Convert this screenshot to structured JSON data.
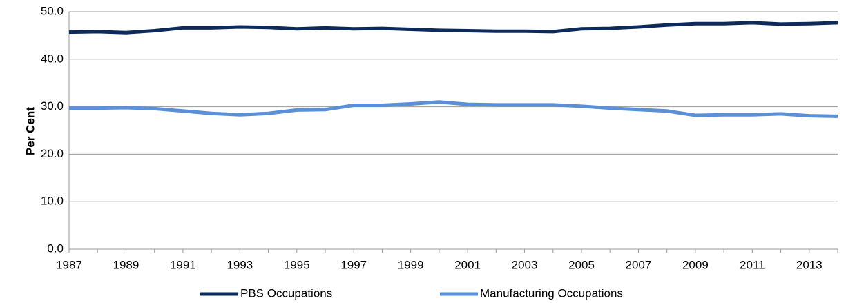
{
  "chart_data": {
    "type": "line",
    "y_label": "Per Cent",
    "categories": [
      "1987",
      null,
      "1989",
      null,
      "1991",
      null,
      "1993",
      null,
      "1995",
      null,
      "1997",
      null,
      "1999",
      null,
      "2001",
      null,
      "2003",
      null,
      "2005",
      null,
      "2007",
      null,
      "2009",
      null,
      "2011",
      null,
      "2013",
      null
    ],
    "series": [
      {
        "name": "PBS Occupations",
        "color": "#0d2a5a",
        "values": [
          45.7,
          45.8,
          45.6,
          46.0,
          46.6,
          46.6,
          46.8,
          46.7,
          46.4,
          46.6,
          46.4,
          46.5,
          46.3,
          46.1,
          46.0,
          45.9,
          45.9,
          45.8,
          46.4,
          46.5,
          46.8,
          47.2,
          47.5,
          47.5,
          47.7,
          47.4,
          47.5,
          47.7
        ]
      },
      {
        "name": "Manufacturing Occupations",
        "color": "#5b8fd6",
        "values": [
          29.7,
          29.7,
          29.8,
          29.6,
          29.1,
          28.6,
          28.3,
          28.6,
          29.3,
          29.4,
          30.3,
          30.3,
          30.6,
          31.0,
          30.5,
          30.4,
          30.4,
          30.4,
          30.1,
          29.7,
          29.4,
          29.1,
          28.2,
          28.3,
          28.3,
          28.5,
          28.1,
          28.0
        ]
      }
    ],
    "ylim": [
      0,
      50
    ],
    "yticks": [
      {
        "value": 0,
        "label": "0.0"
      },
      {
        "value": 10,
        "label": "10.0"
      },
      {
        "value": 20,
        "label": "20.0"
      },
      {
        "value": 30,
        "label": "30.0"
      },
      {
        "value": 40,
        "label": "40.0"
      },
      {
        "value": 50,
        "label": "50.0"
      }
    ],
    "grid": true,
    "legend": "bottom"
  }
}
